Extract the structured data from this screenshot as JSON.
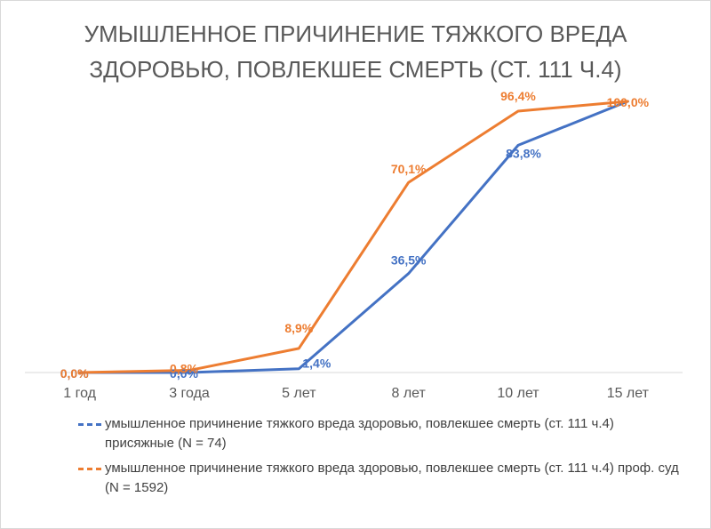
{
  "chart_data": {
    "type": "line",
    "title_lines": [
      "УМЫШЛЕННОЕ ПРИЧИНЕНИЕ ТЯЖКОГО ВРЕДА",
      "ЗДОРОВЬЮ, ПОВЛЕКШЕЕ СМЕРТЬ (СТ. 111 Ч.4)"
    ],
    "categories": [
      "1 год",
      "3 года",
      "5 лет",
      "8 лет",
      "10 лет",
      "15 лет"
    ],
    "ylim": [
      0,
      100
    ],
    "grid": false,
    "legend_position": "bottom",
    "series": [
      {
        "name": "умышленное причинение тяжкого вреда здоровью, повлекшее смерть (ст. 111 ч.4) присяжные (N = 74)",
        "values": [
          0.0,
          0.0,
          1.4,
          36.5,
          83.8,
          100.0
        ],
        "labels": [
          "0,0%",
          "0,0%",
          "1,4%",
          "36,5%",
          "83,8%",
          "100,0%"
        ],
        "color": "#4472c4"
      },
      {
        "name": "умышленное причинение тяжкого вреда здоровью, повлекшее смерть (ст. 111 ч.4) проф. суд  (N = 1592)",
        "values": [
          0.0,
          0.8,
          8.9,
          70.1,
          96.4,
          100.0
        ],
        "labels": [
          "0,0%",
          "0,8%",
          "8,9%",
          "70,1%",
          "96,4%",
          "100,0%"
        ],
        "color": "#ed7d31"
      }
    ]
  }
}
